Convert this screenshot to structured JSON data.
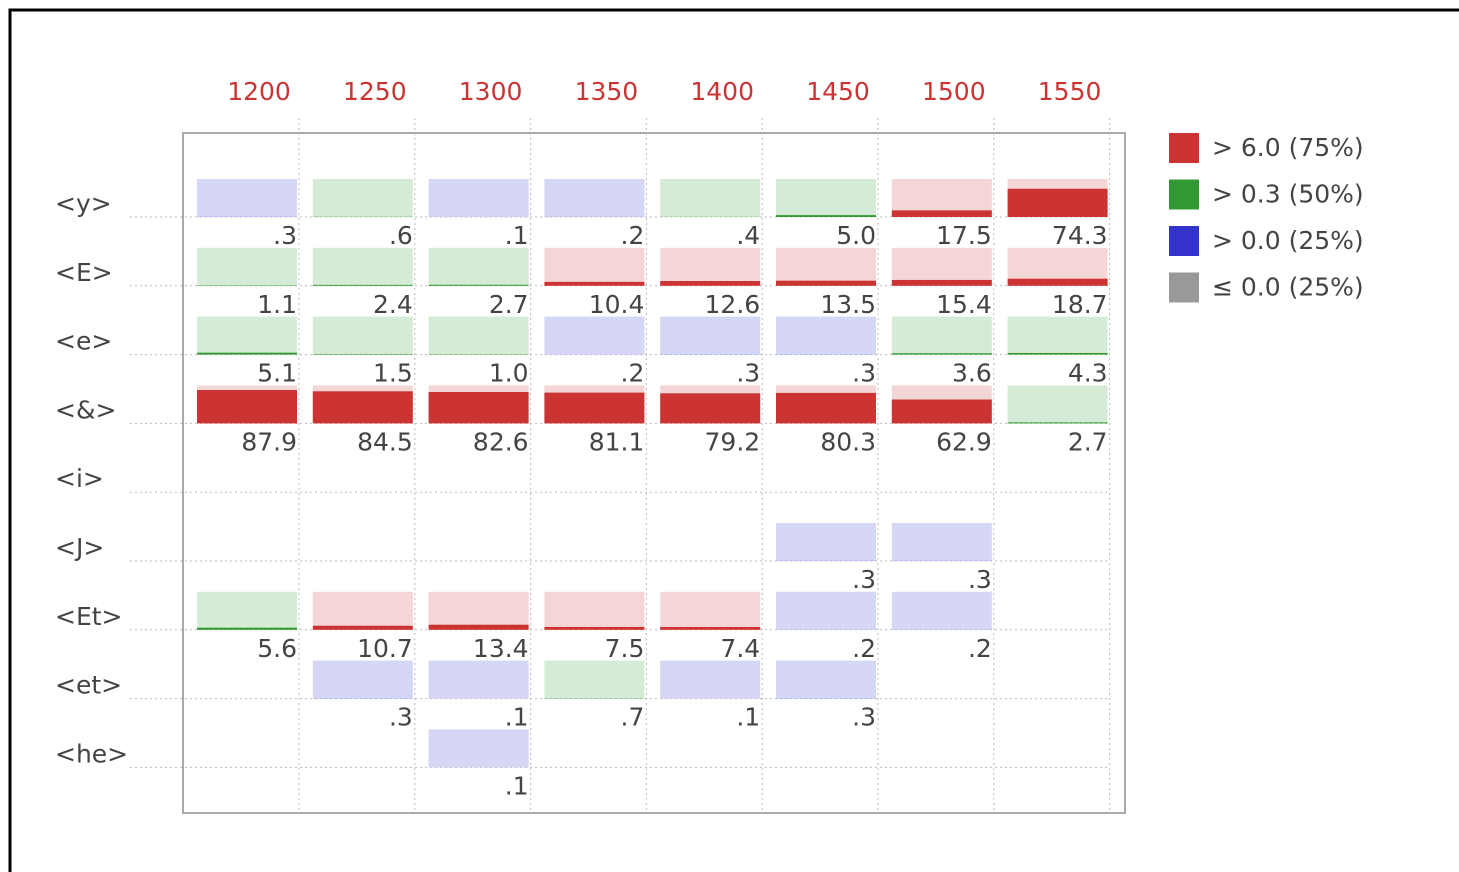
{
  "chart_data": {
    "type": "heatmap",
    "columns": [
      1200,
      1250,
      1300,
      1350,
      1400,
      1450,
      1500,
      1550
    ],
    "rows": [
      {
        "name": "<y>",
        "values": [
          0.3,
          0.6,
          0.1,
          0.2,
          0.4,
          5.0,
          17.5,
          74.3
        ],
        "value_labels": [
          ".3",
          ".6",
          ".1",
          ".2",
          ".4",
          "5.0",
          "17.5",
          "74.3"
        ]
      },
      {
        "name": "<E>",
        "values": [
          1.1,
          2.4,
          2.7,
          10.4,
          12.6,
          13.5,
          15.4,
          18.7
        ],
        "value_labels": [
          "1.1",
          "2.4",
          "2.7",
          "10.4",
          "12.6",
          "13.5",
          "15.4",
          "18.7"
        ]
      },
      {
        "name": "<e>",
        "values": [
          5.1,
          1.5,
          1.0,
          0.2,
          0.3,
          0.3,
          3.6,
          4.3
        ],
        "value_labels": [
          "5.1",
          "1.5",
          "1.0",
          ".2",
          ".3",
          ".3",
          "3.6",
          "4.3"
        ]
      },
      {
        "name": "<&>",
        "values": [
          87.9,
          84.5,
          82.6,
          81.1,
          79.2,
          80.3,
          62.9,
          2.7
        ],
        "value_labels": [
          "87.9",
          "84.5",
          "82.6",
          "81.1",
          "79.2",
          "80.3",
          "62.9",
          "2.7"
        ]
      },
      {
        "name": "<i>",
        "values": [
          null,
          null,
          null,
          null,
          null,
          null,
          null,
          null
        ],
        "value_labels": [
          null,
          null,
          null,
          null,
          null,
          null,
          null,
          null
        ]
      },
      {
        "name": "<J>",
        "values": [
          null,
          null,
          null,
          null,
          null,
          0.3,
          0.3,
          null
        ],
        "value_labels": [
          null,
          null,
          null,
          null,
          null,
          ".3",
          ".3",
          null
        ]
      },
      {
        "name": "<Et>",
        "values": [
          5.6,
          10.7,
          13.4,
          7.5,
          7.4,
          0.2,
          0.2,
          null
        ],
        "value_labels": [
          "5.6",
          "10.7",
          "13.4",
          "7.5",
          "7.4",
          ".2",
          ".2",
          null
        ]
      },
      {
        "name": "<et>",
        "values": [
          null,
          0.3,
          0.1,
          0.7,
          0.1,
          0.3,
          null,
          null
        ],
        "value_labels": [
          null,
          ".3",
          ".1",
          ".7",
          ".1",
          ".3",
          null,
          null
        ]
      },
      {
        "name": "<he>",
        "values": [
          null,
          null,
          0.1,
          null,
          null,
          null,
          null,
          null
        ],
        "value_labels": [
          null,
          null,
          ".1",
          null,
          null,
          null,
          null,
          null
        ]
      }
    ],
    "ylim": [
      0,
      100
    ],
    "legend": [
      {
        "label": "> 6.0 (75%)",
        "color": "#cc3333",
        "min": 6.0
      },
      {
        "label": "> 0.3 (50%)",
        "color": "#339933",
        "min": 0.3
      },
      {
        "label": "> 0.0 (25%)",
        "color": "#3333cc",
        "min": 0.0
      },
      {
        "label": "≤ 0.0 (25%)",
        "color": "#999999"
      }
    ]
  }
}
